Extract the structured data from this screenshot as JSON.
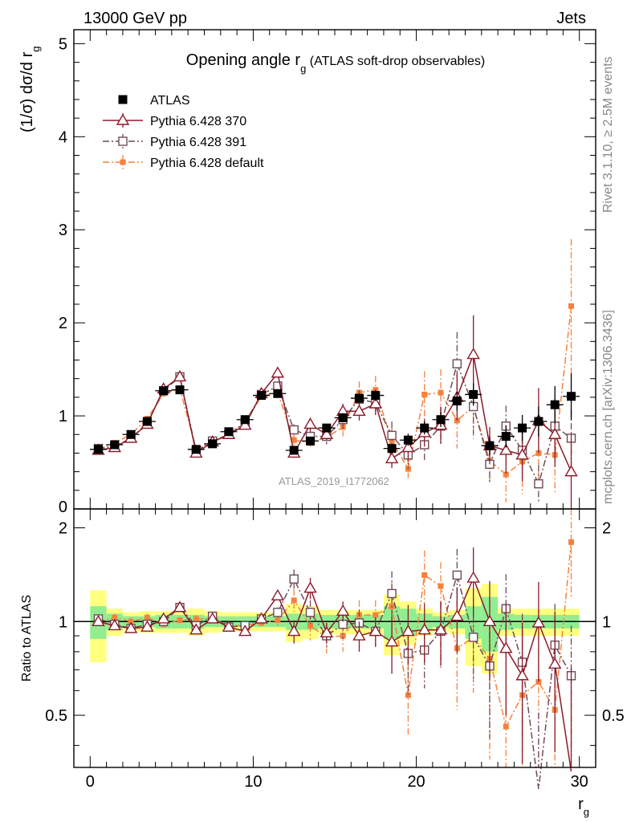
{
  "header": {
    "energy_label": "13000 GeV pp",
    "process_label": "Jets",
    "rivet_label": "Rivet 3.1.10, ≥ 2.5M events",
    "mcplots_label": "mcplots.cern.ch [arXiv:1306.3436]",
    "analysis_label": "ATLAS_2019_I1772062"
  },
  "chart_data": [
    {
      "type": "scatter",
      "panel": "main",
      "title_main": "Opening angle r",
      "title_sub": "g",
      "title_rest": " (ATLAS soft-drop observables)",
      "ylabel": "(1/σ) dσ/d r",
      "ylabel_sub": "g",
      "xlim": [
        -1,
        31
      ],
      "ylim": [
        0,
        5.15
      ],
      "yticks": [
        "1",
        "2",
        "3",
        "4",
        "5"
      ],
      "yticks_val": [
        1,
        2,
        3,
        4,
        5
      ],
      "zero_tick": "0",
      "legend_position": "top-left",
      "x": [
        0.5,
        1.5,
        2.5,
        3.5,
        4.5,
        5.5,
        6.5,
        7.5,
        8.5,
        9.5,
        10.5,
        11.5,
        12.5,
        13.5,
        14.5,
        15.5,
        16.5,
        17.5,
        18.5,
        19.5,
        20.5,
        21.5,
        22.5,
        23.5,
        24.5,
        25.5,
        26.5,
        27.5,
        28.5,
        29.5
      ],
      "series": [
        {
          "name": "ATLAS",
          "color": "#000000",
          "marker": "filled-square",
          "line": "none",
          "values": [
            0.64,
            0.69,
            0.8,
            0.94,
            1.27,
            1.28,
            0.64,
            0.7,
            0.83,
            0.96,
            1.22,
            1.24,
            0.63,
            0.73,
            0.87,
            0.98,
            1.19,
            1.22,
            0.65,
            0.74,
            0.87,
            0.96,
            1.16,
            1.23,
            0.68,
            0.78,
            0.87,
            0.94,
            1.12,
            1.21
          ],
          "errors": [
            0.03,
            0.03,
            0.03,
            0.03,
            0.04,
            0.04,
            0.03,
            0.03,
            0.03,
            0.03,
            0.04,
            0.04,
            0.04,
            0.04,
            0.04,
            0.05,
            0.05,
            0.06,
            0.05,
            0.06,
            0.07,
            0.08,
            0.1,
            0.12,
            0.1,
            0.12,
            0.14,
            0.16,
            0.2,
            0.25
          ]
        },
        {
          "name": "Pythia 6.428 370",
          "color": "#8b1a2b",
          "marker": "open-triangle",
          "line": "solid",
          "values": [
            0.63,
            0.66,
            0.76,
            0.91,
            1.29,
            1.42,
            0.6,
            0.72,
            0.8,
            0.9,
            1.24,
            1.46,
            0.6,
            0.91,
            0.8,
            1.05,
            1.05,
            1.13,
            0.54,
            0.66,
            0.82,
            0.9,
            1.2,
            1.66,
            0.68,
            0.63,
            0.58,
            0.95,
            0.8,
            0.4
          ],
          "errors": [
            0.02,
            0.02,
            0.02,
            0.03,
            0.03,
            0.04,
            0.02,
            0.02,
            0.03,
            0.03,
            0.04,
            0.05,
            0.05,
            0.07,
            0.06,
            0.08,
            0.1,
            0.12,
            0.1,
            0.15,
            0.15,
            0.2,
            0.25,
            0.42,
            0.2,
            0.25,
            0.28,
            0.35,
            0.35,
            0.4
          ]
        },
        {
          "name": "Pythia 6.428 391",
          "color": "#6e4a57",
          "marker": "open-square",
          "line": "dashdot",
          "values": [
            0.65,
            0.67,
            0.76,
            0.92,
            1.27,
            1.42,
            0.62,
            0.73,
            0.8,
            0.93,
            1.23,
            1.32,
            0.85,
            0.78,
            0.78,
            0.96,
            1.18,
            1.14,
            0.79,
            0.58,
            0.69,
            0.89,
            1.56,
            1.1,
            0.48,
            0.89,
            0.63,
            0.27,
            0.89,
            0.76
          ],
          "errors": [
            0.02,
            0.02,
            0.02,
            0.03,
            0.03,
            0.04,
            0.02,
            0.02,
            0.03,
            0.03,
            0.04,
            0.05,
            0.06,
            0.07,
            0.08,
            0.1,
            0.1,
            0.12,
            0.15,
            0.15,
            0.18,
            0.2,
            0.34,
            0.3,
            0.2,
            0.22,
            0.28,
            0.2,
            0.3,
            0.3
          ]
        },
        {
          "name": "Pythia 6.428 default",
          "color": "#f5823c",
          "marker": "filled-small-square",
          "line": "dashdot",
          "values": [
            0.64,
            0.71,
            0.8,
            0.97,
            1.24,
            1.29,
            0.65,
            0.71,
            0.8,
            0.93,
            1.21,
            1.25,
            0.74,
            0.71,
            0.77,
            0.88,
            1.25,
            1.28,
            0.73,
            0.43,
            1.23,
            1.25,
            0.95,
            1.1,
            0.52,
            0.37,
            0.51,
            0.6,
            0.58,
            2.18
          ],
          "errors": [
            0.02,
            0.02,
            0.02,
            0.03,
            0.03,
            0.04,
            0.02,
            0.02,
            0.03,
            0.03,
            0.04,
            0.05,
            0.06,
            0.07,
            0.08,
            0.1,
            0.12,
            0.15,
            0.15,
            0.1,
            0.25,
            0.25,
            0.3,
            0.35,
            0.25,
            0.3,
            0.35,
            0.35,
            0.4,
            0.72
          ]
        }
      ]
    },
    {
      "type": "scatter",
      "panel": "ratio",
      "ylabel": "Ratio to ATLAS",
      "xlabel": "r",
      "xlabel_sub": "g",
      "xlim": [
        -1,
        31
      ],
      "ylim": [
        0.34,
        2.3
      ],
      "xticks": [
        "0",
        "10",
        "20",
        "30"
      ],
      "xticks_val": [
        0,
        10,
        20,
        30
      ],
      "yticks": [
        "0.5",
        "1",
        "2"
      ],
      "yticks_val": [
        0.5,
        1,
        2
      ],
      "band_inner_halfwidth": [
        0.12,
        0.06,
        0.04,
        0.04,
        0.05,
        0.05,
        0.05,
        0.04,
        0.04,
        0.04,
        0.04,
        0.04,
        0.06,
        0.06,
        0.05,
        0.05,
        0.05,
        0.05,
        0.12,
        0.1,
        0.06,
        0.04,
        0.05,
        0.12,
        0.2,
        0.06,
        0.05,
        0.05,
        0.05,
        0.05
      ],
      "band_outer_halfwidth": [
        0.26,
        0.1,
        0.07,
        0.08,
        0.08,
        0.08,
        0.1,
        0.08,
        0.07,
        0.07,
        0.07,
        0.07,
        0.14,
        0.12,
        0.09,
        0.09,
        0.09,
        0.09,
        0.22,
        0.16,
        0.1,
        0.07,
        0.09,
        0.28,
        0.32,
        0.1,
        0.1,
        0.1,
        0.1,
        0.1
      ],
      "series": [
        {
          "name": "Pythia 6.428 370",
          "values": [
            1.0,
            0.97,
            0.95,
            0.96,
            1.02,
            1.11,
            0.94,
            1.02,
            0.96,
            0.93,
            1.02,
            1.21,
            0.93,
            1.28,
            0.92,
            1.08,
            0.9,
            0.93,
            0.86,
            0.93,
            0.94,
            0.94,
            1.04,
            1.38,
            1.0,
            0.82,
            0.67,
            0.99,
            0.73,
            0.33
          ],
          "errors": [
            0.03,
            0.03,
            0.03,
            0.03,
            0.03,
            0.03,
            0.03,
            0.03,
            0.03,
            0.03,
            0.03,
            0.04,
            0.08,
            0.1,
            0.07,
            0.08,
            0.1,
            0.1,
            0.18,
            0.2,
            0.2,
            0.22,
            0.25,
            0.35,
            0.35,
            0.32,
            0.32,
            0.35,
            0.35,
            0.38
          ]
        },
        {
          "name": "Pythia 6.428 391",
          "values": [
            1.02,
            0.98,
            0.95,
            0.98,
            1.0,
            1.11,
            0.97,
            1.04,
            0.96,
            0.97,
            1.02,
            1.07,
            1.37,
            1.07,
            0.9,
            0.98,
            0.99,
            0.93,
            1.23,
            0.79,
            0.81,
            0.93,
            1.41,
            0.89,
            0.72,
            1.1,
            0.74,
            0.29,
            0.84,
            0.67
          ],
          "errors": [
            0.03,
            0.03,
            0.03,
            0.03,
            0.03,
            0.03,
            0.03,
            0.03,
            0.03,
            0.03,
            0.03,
            0.04,
            0.1,
            0.1,
            0.08,
            0.1,
            0.1,
            0.1,
            0.22,
            0.22,
            0.2,
            0.22,
            0.3,
            0.25,
            0.3,
            0.32,
            0.32,
            0.22,
            0.3,
            0.3
          ]
        },
        {
          "name": "Pythia 6.428 default",
          "values": [
            1.0,
            1.03,
            1.0,
            1.03,
            0.98,
            1.01,
            1.02,
            1.02,
            0.97,
            0.97,
            0.99,
            1.01,
            1.17,
            0.97,
            0.89,
            0.9,
            1.05,
            1.05,
            1.12,
            0.58,
            1.41,
            1.3,
            0.82,
            0.89,
            0.76,
            0.46,
            0.58,
            0.64,
            0.52,
            1.8
          ],
          "errors": [
            0.03,
            0.03,
            0.03,
            0.03,
            0.03,
            0.03,
            0.03,
            0.03,
            0.03,
            0.03,
            0.03,
            0.04,
            0.1,
            0.1,
            0.1,
            0.1,
            0.12,
            0.12,
            0.22,
            0.15,
            0.28,
            0.25,
            0.3,
            0.3,
            0.4,
            0.45,
            0.45,
            0.45,
            0.45,
            0.6
          ]
        }
      ]
    }
  ]
}
